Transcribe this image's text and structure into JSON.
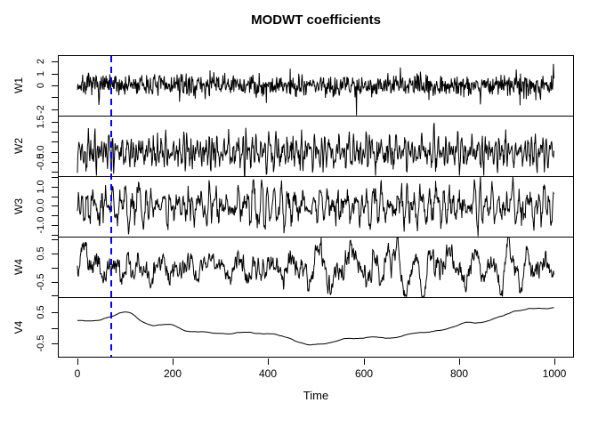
{
  "chart_data": {
    "type": "line",
    "title": "MODWT coefficients",
    "xlabel": "Time",
    "background": "#ffffff",
    "series_color": "#000000",
    "x_axis": {
      "label": "Time",
      "xlim": [
        0,
        1000
      ],
      "n_points": 1000,
      "ticks": [
        {
          "v": 0,
          "label": "0"
        },
        {
          "v": 200,
          "label": "200"
        },
        {
          "v": 400,
          "label": "400"
        },
        {
          "v": 600,
          "label": "600"
        },
        {
          "v": 800,
          "label": "800"
        },
        {
          "v": 1000,
          "label": "1000"
        }
      ]
    },
    "vline": {
      "x": 70,
      "color": "#0000FF",
      "style": "dashed",
      "width": 2
    },
    "panels": [
      {
        "label": "W1",
        "ylim": [
          -2.55,
          2.55
        ],
        "ticks": [
          {
            "v": 2,
            "label": "2"
          },
          {
            "v": 1,
            "label": "1"
          },
          {
            "v": 0,
            "label": "0"
          },
          {
            "v": -1,
            "label": ""
          },
          {
            "v": -2,
            "label": "-2"
          }
        ],
        "signal": {
          "kind": "noise",
          "sd": 0.48,
          "spike_prob": 0.03,
          "spike_mult": 2.2,
          "seed": 7
        }
      },
      {
        "label": "W2",
        "ylim": [
          -1.2,
          1.8
        ],
        "ticks": [
          {
            "v": 1.5,
            "label": "1.5"
          },
          {
            "v": 1.0,
            "label": ""
          },
          {
            "v": 0.5,
            "label": ""
          },
          {
            "v": 0.0,
            "label": "0.0"
          },
          {
            "v": -0.5,
            "label": "-0.5"
          },
          {
            "v": -1.0,
            "label": ""
          }
        ],
        "signal": {
          "kind": "detail",
          "window": 3,
          "sd": 0.45,
          "seed": 13
        }
      },
      {
        "label": "W3",
        "ylim": [
          -1.6,
          1.55
        ],
        "ticks": [
          {
            "v": 1.5,
            "label": ""
          },
          {
            "v": 1.0,
            "label": "1.0"
          },
          {
            "v": 0.5,
            "label": ""
          },
          {
            "v": 0.0,
            "label": "0.0"
          },
          {
            "v": -0.5,
            "label": ""
          },
          {
            "v": -1.0,
            "label": "-1.0"
          },
          {
            "v": -1.5,
            "label": ""
          }
        ],
        "signal": {
          "kind": "detail",
          "window": 5,
          "sd": 0.55,
          "seed": 29
        }
      },
      {
        "label": "W4",
        "ylim": [
          -1.05,
          1.1
        ],
        "ticks": [
          {
            "v": 1.0,
            "label": ""
          },
          {
            "v": 0.5,
            "label": "0.5"
          },
          {
            "v": 0.0,
            "label": ""
          },
          {
            "v": -0.5,
            "label": "-0.5"
          },
          {
            "v": -1.0,
            "label": ""
          }
        ],
        "signal": {
          "kind": "detail",
          "window": 14,
          "sd": 0.4,
          "seed": 31
        }
      },
      {
        "label": "V4",
        "ylim": [
          -0.95,
          1.0
        ],
        "ticks": [
          {
            "v": 0.5,
            "label": "0.5"
          },
          {
            "v": 0.0,
            "label": ""
          },
          {
            "v": -0.5,
            "label": "-0.5"
          }
        ],
        "signal": {
          "kind": "smooth",
          "window": 40,
          "step": 0.18,
          "sd": 0.34,
          "ramp": 0.5,
          "seed": 97
        }
      }
    ]
  }
}
